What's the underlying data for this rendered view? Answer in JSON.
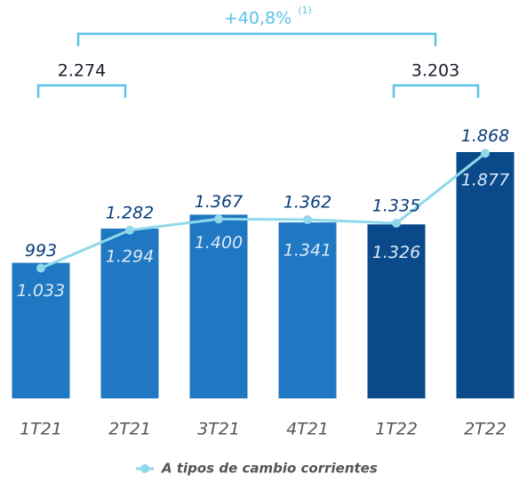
{
  "chart_data": {
    "type": "bar-line",
    "categories": [
      "1T21",
      "2T21",
      "3T21",
      "4T21",
      "1T22",
      "2T22"
    ],
    "series": [
      {
        "type": "bar",
        "colors": [
          "#1f78c1",
          "#1f78c1",
          "#1f78c1",
          "#1f78c1",
          "#0a4a8b",
          "#0a4a8b"
        ],
        "values": [
          1033,
          1294,
          1400,
          1341,
          1326,
          1877
        ],
        "value_labels": [
          "1.033",
          "1.294",
          "1.400",
          "1.341",
          "1.326",
          "1.877"
        ]
      },
      {
        "type": "line",
        "name": "A tipos de cambio corrientes",
        "color": "#8fd9ea",
        "values": [
          993,
          1282,
          1367,
          1362,
          1335,
          1868
        ],
        "value_labels": [
          "993",
          "1.282",
          "1.367",
          "1.362",
          "1.335",
          "1.868"
        ]
      }
    ],
    "annotations": {
      "growth": "+40,8%",
      "note": "(1)",
      "total_2021": "2.274",
      "total_2022": "3.203"
    }
  }
}
